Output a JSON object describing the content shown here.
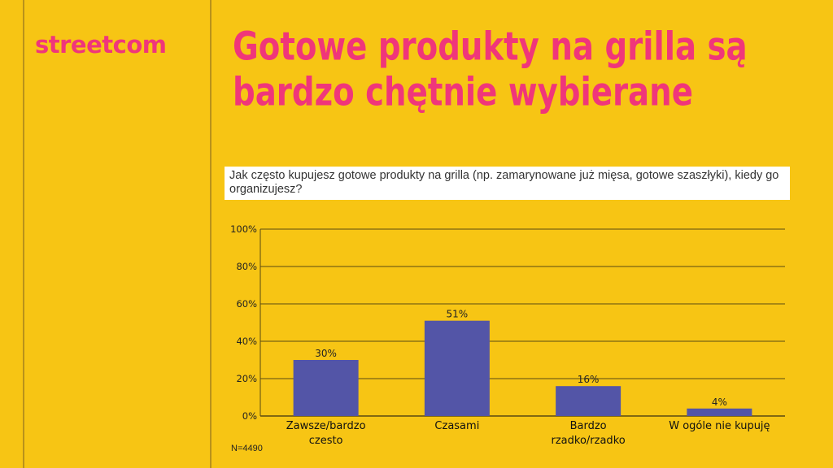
{
  "brand": {
    "logo": "streetcom",
    "colors": {
      "background": "#F7C514",
      "accent": "#F0367A",
      "bar": "#5355A7"
    }
  },
  "title": "Gotowe produkty na grilla są bardzo chętnie wybierane",
  "question": "Jak często kupujesz gotowe produkty na grilla (np. zamarynowane już mięsa, gotowe szaszłyki), kiedy go organizujesz?",
  "note": "N=4490",
  "chart_data": {
    "type": "bar",
    "categories": [
      [
        "Zawsze/bardzo",
        "czesto"
      ],
      [
        "Czasami"
      ],
      [
        "Bardzo",
        "rzadko/rzadko"
      ],
      [
        "W ogóle nie kupuję"
      ]
    ],
    "values": [
      30,
      51,
      16,
      4
    ],
    "value_labels": [
      "30%",
      "51%",
      "16%",
      "4%"
    ],
    "ylim": [
      0,
      100
    ],
    "yticks": [
      0,
      20,
      40,
      60,
      80,
      100
    ],
    "ytick_labels": [
      "0%",
      "20%",
      "40%",
      "60%",
      "80%",
      "100%"
    ],
    "grid": true,
    "legend": "none"
  }
}
